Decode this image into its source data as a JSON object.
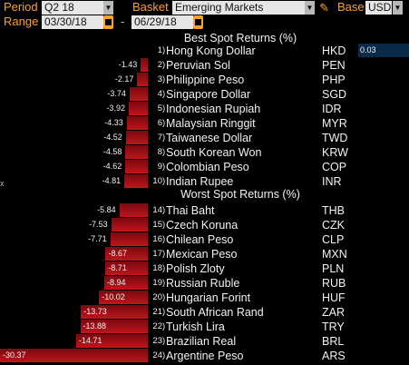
{
  "toolbar": {
    "period_label": "Period",
    "period_value": "Q2 18",
    "basket_label": "Basket",
    "basket_value": "Emerging Markets",
    "base_label": "Base",
    "base_value": "USD",
    "range_label": "Range",
    "start_date": "03/30/18",
    "range_dash": "-",
    "end_date": "06/29/18",
    "dropdown_glyph": "▼"
  },
  "headers": {
    "best": "Best Spot Returns (%)",
    "worst": "Worst Spot Returns (%)"
  },
  "edge_glyph": "x",
  "colors": {
    "accent": "#ffa028",
    "bar_top": "#7a0a10",
    "bar_bottom": "#c0141c",
    "positive_bar": "#0a2a4a"
  },
  "chart_data": {
    "type": "bar",
    "best": [
      {
        "rank": "1",
        "name": "Hong Kong Dollar",
        "code": "HKD",
        "value": 0.03,
        "label": "0.03"
      },
      {
        "rank": "2",
        "name": "Peruvian Sol",
        "code": "PEN",
        "value": -1.43,
        "label": "-1.43"
      },
      {
        "rank": "3",
        "name": "Philippine Peso",
        "code": "PHP",
        "value": -2.17,
        "label": "-2.17"
      },
      {
        "rank": "4",
        "name": "Singapore Dollar",
        "code": "SGD",
        "value": -3.74,
        "label": "-3.74"
      },
      {
        "rank": "5",
        "name": "Indonesian Rupiah",
        "code": "IDR",
        "value": -3.92,
        "label": "-3.92"
      },
      {
        "rank": "6",
        "name": "Malaysian Ringgit",
        "code": "MYR",
        "value": -4.33,
        "label": "-4.33"
      },
      {
        "rank": "7",
        "name": "Taiwanese Dollar",
        "code": "TWD",
        "value": -4.52,
        "label": "-4.52"
      },
      {
        "rank": "8",
        "name": "South Korean Won",
        "code": "KRW",
        "value": -4.58,
        "label": "-4.58"
      },
      {
        "rank": "9",
        "name": "Colombian Peso",
        "code": "COP",
        "value": -4.62,
        "label": "-4.62"
      },
      {
        "rank": "10",
        "name": "Indian Rupee",
        "code": "INR",
        "value": -4.81,
        "label": "-4.81"
      }
    ],
    "worst": [
      {
        "rank": "14",
        "name": "Thai Baht",
        "code": "THB",
        "value": -5.84,
        "label": "-5.84"
      },
      {
        "rank": "15",
        "name": "Czech Koruna",
        "code": "CZK",
        "value": -7.53,
        "label": "-7.53"
      },
      {
        "rank": "16",
        "name": "Chilean Peso",
        "code": "CLP",
        "value": -7.71,
        "label": "-7.71"
      },
      {
        "rank": "17",
        "name": "Mexican Peso",
        "code": "MXN",
        "value": -8.67,
        "label": "-8.67"
      },
      {
        "rank": "18",
        "name": "Polish Zloty",
        "code": "PLN",
        "value": -8.71,
        "label": "-8.71"
      },
      {
        "rank": "19",
        "name": "Russian Ruble",
        "code": "RUB",
        "value": -8.94,
        "label": "-8.94"
      },
      {
        "rank": "20",
        "name": "Hungarian Forint",
        "code": "HUF",
        "value": -10.02,
        "label": "-10.02"
      },
      {
        "rank": "21",
        "name": "South African Rand",
        "code": "ZAR",
        "value": -13.73,
        "label": "-13.73"
      },
      {
        "rank": "22",
        "name": "Turkish Lira",
        "code": "TRY",
        "value": -13.88,
        "label": "-13.88"
      },
      {
        "rank": "23",
        "name": "Brazilian Real",
        "code": "BRL",
        "value": -14.71,
        "label": "-14.71"
      },
      {
        "rank": "24",
        "name": "Argentine Peso",
        "code": "ARS",
        "value": -30.37,
        "label": "-30.37"
      }
    ]
  }
}
